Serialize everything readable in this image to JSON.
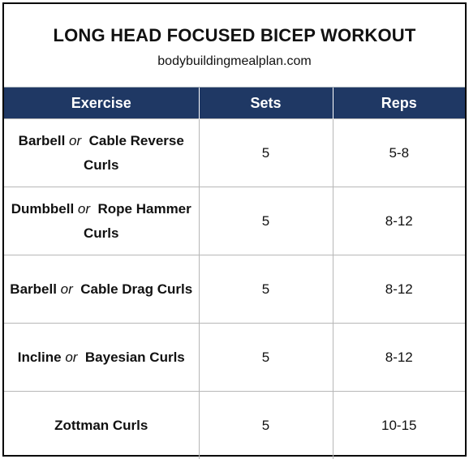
{
  "title": "LONG HEAD FOCUSED BICEP WORKOUT",
  "subtitle": "bodybuildingmealplan.com",
  "colors": {
    "header_bg": "#1f3864",
    "header_text": "#ffffff"
  },
  "columns": [
    "Exercise",
    "Sets",
    "Reps"
  ],
  "rows": [
    {
      "first": "Barbell",
      "or": "or",
      "second": "Cable Reverse Curls",
      "sets": "5",
      "reps": "5-8"
    },
    {
      "first": "Dumbbell",
      "or": "or",
      "second": "Rope Hammer Curls",
      "sets": "5",
      "reps": "8-12"
    },
    {
      "first": "Barbell",
      "or": "or",
      "second": "Cable Drag Curls",
      "sets": "5",
      "reps": "8-12"
    },
    {
      "first": "Incline",
      "or": "or",
      "second": "Bayesian Curls",
      "sets": "5",
      "reps": "8-12"
    },
    {
      "first": "Zottman Curls",
      "or": "",
      "second": "",
      "sets": "5",
      "reps": "10-15"
    }
  ]
}
